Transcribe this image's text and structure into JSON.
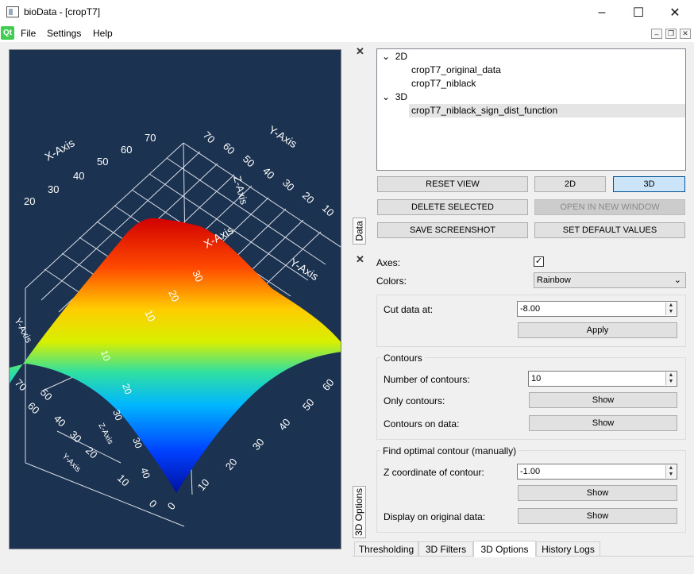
{
  "window": {
    "title": "bioData - [cropT7]",
    "minimize": "–",
    "maximize": "☐",
    "close": "✕"
  },
  "menubar": {
    "logo": "Qt",
    "items": [
      "File",
      "Settings",
      "Help"
    ]
  },
  "plot": {
    "x_axis_label": "X-Axis",
    "y_axis_label": "Y-Axis",
    "z_axis_label": "Z-Axis",
    "background": "#1b3250",
    "top_x_ticks": [
      "20",
      "30",
      "40",
      "50",
      "60",
      "70"
    ],
    "top_y_ticks": [
      "70",
      "60",
      "50",
      "40",
      "30",
      "20",
      "10"
    ],
    "z_ticks": [
      "10",
      "20",
      "30",
      "40",
      "50"
    ],
    "bottom_x_ticks": [
      "0",
      "10",
      "20",
      "30",
      "40",
      "50",
      "60"
    ],
    "left_y_ticks": [
      "50",
      "60",
      "70",
      "40",
      "30",
      "20",
      "10",
      "0"
    ],
    "front_z_ticks": [
      "40",
      "30",
      "20",
      "10",
      "30"
    ]
  },
  "docks": {
    "data_tab": "Data",
    "options_tab": "3D Options"
  },
  "tree": {
    "groups": [
      {
        "label": "2D",
        "children": [
          "cropT7_original_data",
          "cropT7_niblack"
        ]
      },
      {
        "label": "3D",
        "children": [
          "cropT7_niblack_sign_dist_function"
        ]
      }
    ],
    "selected": "cropT7_niblack_sign_dist_function"
  },
  "buttons": {
    "reset_view": "RESET VIEW",
    "view_2d": "2D",
    "view_3d": "3D",
    "delete_selected": "DELETE SELECTED",
    "open_new_window": "OPEN IN NEW WINDOW",
    "save_screenshot": "SAVE SCREENSHOT",
    "set_defaults": "SET DEFAULT VALUES"
  },
  "options": {
    "axes_label": "Axes:",
    "axes_checked": "✓",
    "colors_label": "Colors:",
    "colors_value": "Rainbow",
    "cut_label": "Cut data at:",
    "cut_value": "-8.00",
    "apply": "Apply",
    "contours_title": "Contours",
    "num_contours_label": "Number of contours:",
    "num_contours_value": "10",
    "only_contours_label": "Only contours:",
    "only_contours_btn": "Show",
    "contours_on_data_label": "Contours on data:",
    "contours_on_data_btn": "Show",
    "optimal_title": "Find optimal contour (manually)",
    "z_coord_label": "Z coordinate of contour:",
    "z_coord_value": "-1.00",
    "z_coord_btn": "Show",
    "display_orig_label": "Display on original data:",
    "display_orig_btn": "Show"
  },
  "bottom_tabs": [
    "Thresholding",
    "3D Filters",
    "3D Options",
    "History Logs"
  ],
  "active_tab": "3D Options"
}
